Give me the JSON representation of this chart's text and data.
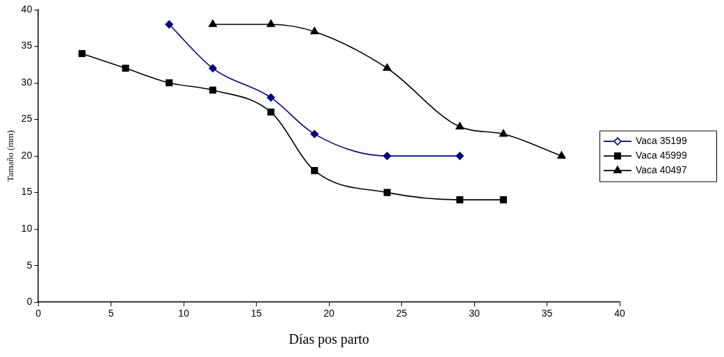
{
  "chart_data": {
    "type": "line",
    "xlabel": "Días pos parto",
    "ylabel": "Tamaño (mm)",
    "xlim": [
      0,
      40
    ],
    "xticks": [
      0,
      5,
      10,
      15,
      20,
      25,
      30,
      35,
      40
    ],
    "ylim": [
      0,
      40
    ],
    "yticks": [
      0,
      5,
      10,
      15,
      20,
      25,
      30,
      35,
      40
    ],
    "grid": false,
    "legend": "right",
    "line_style": "solid",
    "series": [
      {
        "name": "Vaca 35199",
        "color": "#000080",
        "marker": "diamond",
        "x": [
          9,
          12,
          16,
          19,
          24,
          29
        ],
        "values": [
          38,
          32,
          28,
          23,
          20,
          20
        ]
      },
      {
        "name": "Vaca 45999",
        "color": "#000000",
        "marker": "square",
        "x": [
          3,
          6,
          9,
          12,
          16,
          19,
          24,
          29,
          32
        ],
        "values": [
          34,
          32,
          30,
          29,
          26,
          18,
          15,
          14,
          14
        ]
      },
      {
        "name": "Vaca 40497",
        "color": "#000000",
        "marker": "triangle",
        "x": [
          12,
          16,
          19,
          24,
          29,
          32,
          36
        ],
        "values": [
          38,
          38,
          37,
          32,
          24,
          23,
          20
        ]
      }
    ]
  }
}
